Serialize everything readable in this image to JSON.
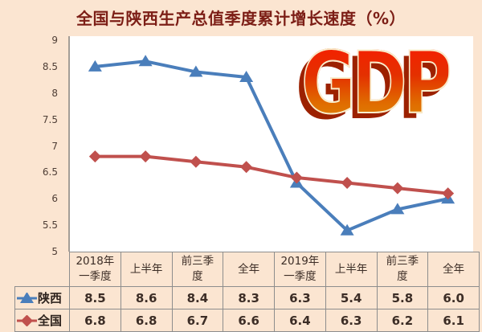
{
  "title": "全国与陕西生产总值季度累计增长速度（%）",
  "watermark": {
    "text": "GDP"
  },
  "colors": {
    "background": "#fbe5d1",
    "title_text": "#7c1e16",
    "shaanxi_blue": "#4a7ebb",
    "national_red": "#c0504d",
    "table_border": "#8d8d8d"
  },
  "chart_data": {
    "type": "line",
    "title": "全国与陕西生产总值季度累计增长速度（%）",
    "categories": [
      "2018年\n一季度",
      "上半年",
      "前三季\n度",
      "全年",
      "2019年\n一季度",
      "上半年",
      "前三季\n度",
      "全年"
    ],
    "series": [
      {
        "name": "陕西",
        "marker": "triangle",
        "color": "#4a7ebb",
        "values": [
          8.5,
          8.6,
          8.4,
          8.3,
          6.3,
          5.4,
          5.8,
          6.0
        ]
      },
      {
        "name": "全国",
        "marker": "diamond",
        "color": "#c0504d",
        "values": [
          6.8,
          6.8,
          6.7,
          6.6,
          6.4,
          6.3,
          6.2,
          6.1
        ]
      }
    ],
    "ylim": [
      5,
      9
    ],
    "ytick_step": 0.5,
    "yticks": [
      "9",
      "8.5",
      "8",
      "7.5",
      "7",
      "6.5",
      "6",
      "5.5",
      "5"
    ],
    "grid": false,
    "legend_position": "table-left",
    "value_format_decimals": 1
  }
}
